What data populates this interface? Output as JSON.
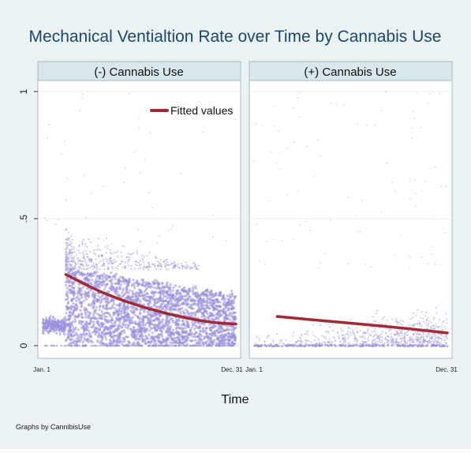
{
  "chart_data": {
    "type": "scatter",
    "title": "Mechanical Ventialtion Rate over Time by Cannabis Use",
    "xlabel": "Time",
    "ylabel": "",
    "note": "Graphs by CannibisUse",
    "ylim": [
      0,
      1
    ],
    "y_ticks": [
      {
        "value": 0,
        "label": "0"
      },
      {
        "value": 0.5,
        "label": ".5"
      },
      {
        "value": 1,
        "label": "1"
      }
    ],
    "x_ticks": [
      "Jan. 1",
      "Dec. 31"
    ],
    "grid": true,
    "legend": {
      "position": "top-right",
      "entries": [
        "Fitted values"
      ]
    },
    "colors": {
      "background": "#eaf2f3",
      "panel": "#ffffff",
      "strip": "#d9e6eb",
      "scatter": "#9b92de",
      "fitted_line": "#a12a36",
      "title": "#1a476f"
    },
    "panels": [
      {
        "name": "(-) Cannabis Use",
        "fitted_values": [
          {
            "x": 0.12,
            "y": 0.28
          },
          {
            "x": 0.3,
            "y": 0.21
          },
          {
            "x": 0.5,
            "y": 0.155
          },
          {
            "x": 0.7,
            "y": 0.115
          },
          {
            "x": 0.88,
            "y": 0.09
          },
          {
            "x": 1.0,
            "y": 0.085
          }
        ],
        "scatter_description": "dense cloud 0-0.3 after early drop, wider spread 0.3-0.7 near start"
      },
      {
        "name": "(+) Cannabis Use",
        "fitted_values": [
          {
            "x": 0.12,
            "y": 0.115
          },
          {
            "x": 0.4,
            "y": 0.095
          },
          {
            "x": 0.7,
            "y": 0.075
          },
          {
            "x": 1.0,
            "y": 0.05
          }
        ],
        "scatter_description": "sparse points mostly below 0.3, band at 0"
      }
    ]
  }
}
